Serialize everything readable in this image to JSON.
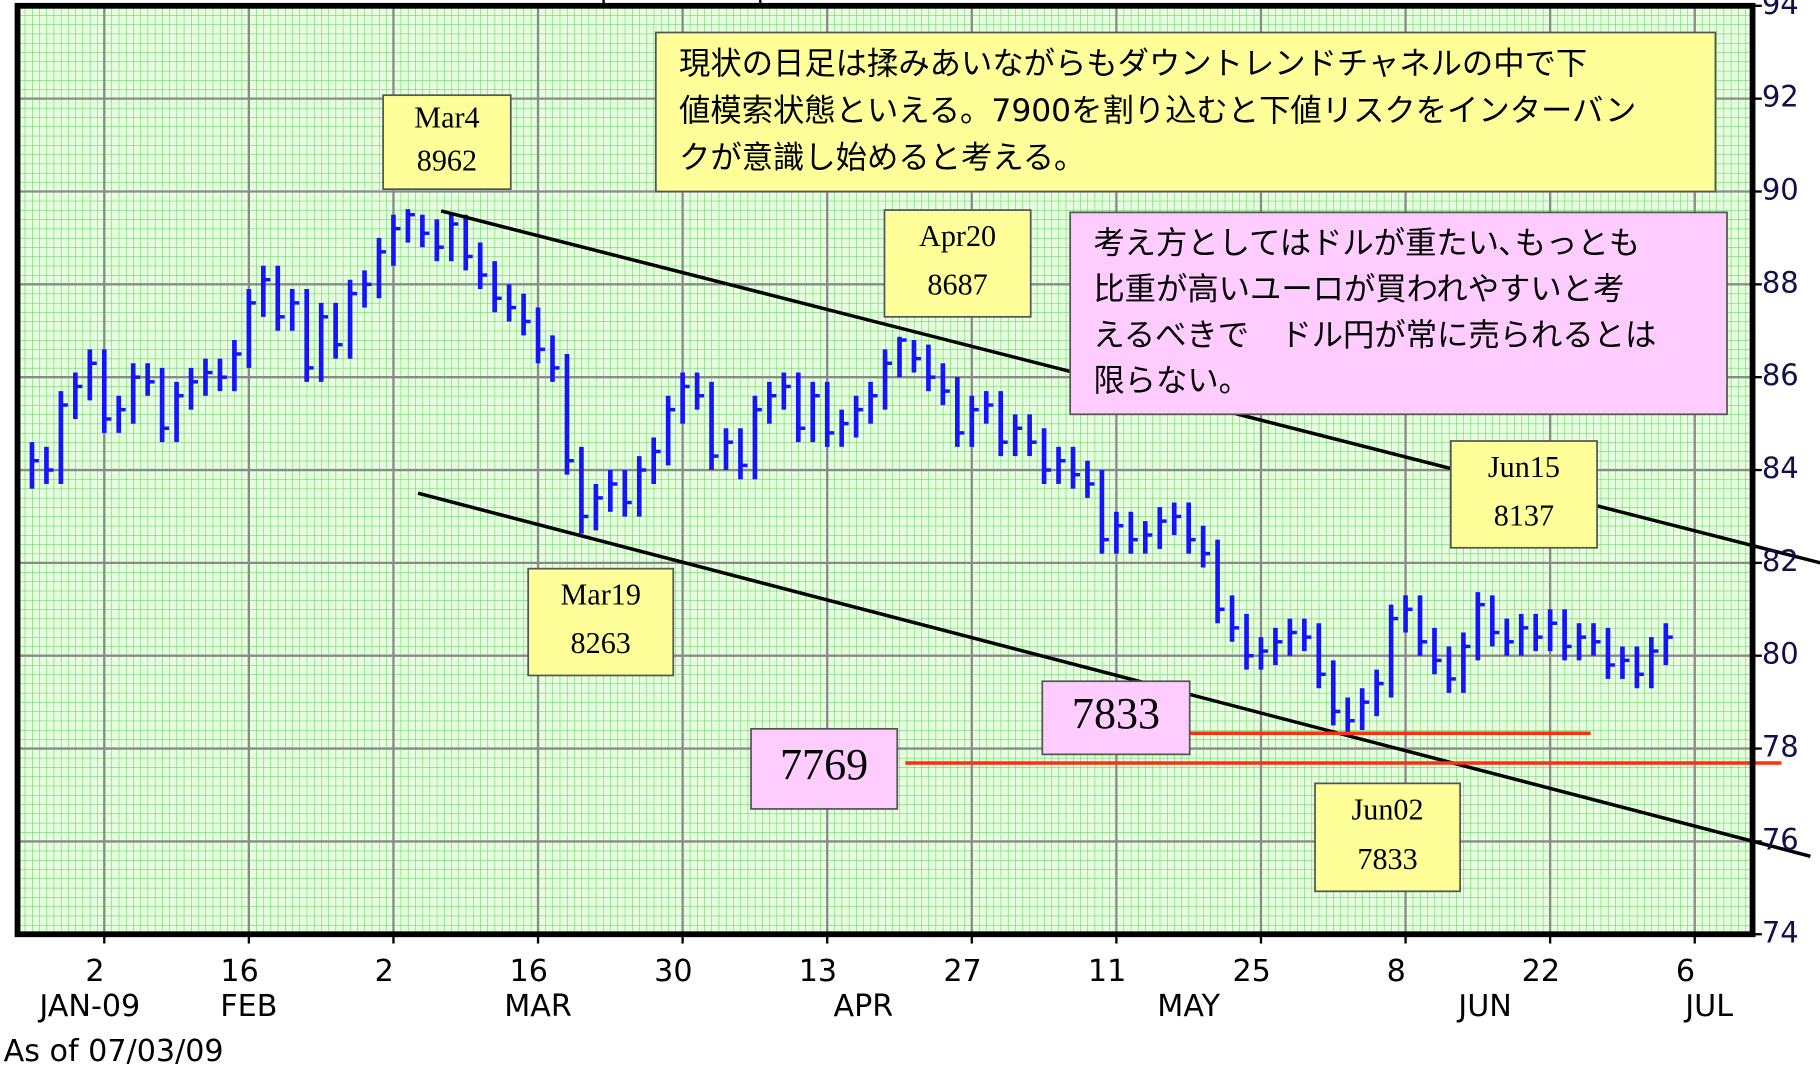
{
  "chart_data": {
    "type": "hlc",
    "footnote": "As of 07/03/09",
    "xlim": [
      0,
      120
    ],
    "ylim": [
      74,
      94
    ],
    "yticks": [
      74,
      76,
      78,
      80,
      82,
      84,
      86,
      88,
      90,
      92,
      94
    ],
    "xticks": [
      {
        "value": 6,
        "label": "2"
      },
      {
        "value": 16,
        "label": "16"
      },
      {
        "value": 26,
        "label": "2"
      },
      {
        "value": 36,
        "label": "16"
      },
      {
        "value": 46,
        "label": "30"
      },
      {
        "value": 56,
        "label": "13"
      },
      {
        "value": 66,
        "label": "27"
      },
      {
        "value": 76,
        "label": "11"
      },
      {
        "value": 86,
        "label": "25"
      },
      {
        "value": 96,
        "label": "8"
      },
      {
        "value": 106,
        "label": "22"
      },
      {
        "value": 116,
        "label": "6"
      }
    ],
    "x_month_labels": [
      {
        "value": 5,
        "label": "JAN-09"
      },
      {
        "value": 16,
        "label": "FEB"
      },
      {
        "value": 36,
        "label": "MAR"
      },
      {
        "value": 58.5,
        "label": "APR"
      },
      {
        "value": 81,
        "label": "MAY"
      },
      {
        "value": 101.5,
        "label": "JUN"
      },
      {
        "value": 117,
        "label": "JUL"
      }
    ],
    "grid": true,
    "color": "#1414ff",
    "x": [
      1,
      2,
      3,
      4,
      5,
      6,
      7,
      8,
      9,
      10,
      11,
      12,
      13,
      14,
      15,
      16,
      17,
      18,
      19,
      20,
      21,
      22,
      23,
      24,
      25,
      26,
      27,
      28,
      29,
      30,
      31,
      32,
      33,
      34,
      35,
      36,
      37,
      38,
      39,
      40,
      41,
      42,
      43,
      44,
      45,
      46,
      47,
      48,
      49,
      50,
      51,
      52,
      53,
      54,
      55,
      56,
      57,
      58,
      59,
      60,
      61,
      62,
      63,
      64,
      65,
      66,
      67,
      68,
      69,
      70,
      71,
      72,
      73,
      74,
      75,
      76,
      77,
      78,
      79,
      80,
      81,
      82,
      83,
      84,
      85,
      86,
      87,
      88,
      89,
      90,
      91,
      92,
      93,
      94,
      95,
      96,
      97,
      98,
      99,
      100,
      101,
      102,
      103,
      104,
      105,
      106,
      107,
      108,
      109,
      110,
      111,
      112,
      113,
      114
    ],
    "high": [
      84.6,
      84.5,
      85.7,
      86.1,
      86.6,
      86.6,
      85.6,
      86.3,
      86.3,
      86.2,
      85.9,
      86.2,
      86.4,
      86.4,
      86.8,
      87.9,
      88.4,
      88.4,
      87.9,
      87.9,
      87.6,
      87.6,
      88.1,
      88.3,
      89.0,
      89.5,
      89.62,
      89.5,
      89.4,
      89.5,
      89.5,
      88.9,
      88.5,
      88.0,
      87.8,
      87.5,
      86.9,
      86.5,
      84.5,
      83.7,
      84.0,
      84.0,
      84.3,
      84.7,
      85.6,
      86.1,
      86.1,
      85.9,
      84.9,
      84.9,
      85.6,
      85.9,
      86.1,
      86.1,
      85.9,
      85.9,
      85.3,
      85.6,
      85.9,
      86.6,
      86.87,
      86.8,
      86.7,
      86.3,
      86.0,
      85.6,
      85.7,
      85.7,
      85.2,
      85.2,
      84.9,
      84.5,
      84.5,
      84.2,
      84.0,
      83.1,
      83.1,
      82.9,
      83.2,
      83.3,
      83.3,
      82.8,
      82.5,
      81.3,
      80.9,
      80.4,
      80.6,
      80.8,
      80.8,
      80.7,
      79.9,
      79.1,
      79.3,
      79.7,
      81.1,
      81.3,
      81.3,
      80.6,
      80.2,
      80.5,
      81.37,
      81.3,
      80.8,
      80.9,
      80.9,
      81.0,
      81.0,
      80.7,
      80.7,
      80.6,
      80.2,
      80.2,
      80.4,
      80.7
    ],
    "low": [
      83.6,
      83.7,
      83.7,
      85.1,
      85.5,
      84.8,
      84.8,
      85.0,
      85.6,
      84.6,
      84.6,
      85.3,
      85.6,
      85.7,
      85.7,
      86.2,
      87.3,
      87.0,
      87.0,
      85.9,
      85.9,
      86.4,
      86.4,
      87.5,
      87.7,
      88.4,
      88.9,
      88.8,
      88.5,
      88.5,
      88.3,
      87.9,
      87.4,
      87.2,
      86.9,
      86.3,
      85.9,
      83.9,
      82.63,
      82.7,
      83.1,
      83.0,
      83.0,
      83.7,
      84.1,
      85.0,
      85.3,
      84.0,
      84.0,
      83.8,
      83.8,
      85.0,
      85.3,
      84.6,
      84.6,
      84.5,
      84.5,
      84.7,
      85.0,
      85.3,
      86.0,
      86.1,
      85.7,
      85.4,
      84.5,
      84.5,
      85.0,
      84.3,
      84.3,
      84.3,
      83.7,
      83.7,
      83.6,
      83.4,
      82.2,
      82.2,
      82.2,
      82.2,
      82.3,
      82.6,
      82.2,
      81.9,
      80.7,
      80.3,
      79.7,
      79.7,
      79.8,
      80.0,
      80.1,
      79.3,
      78.5,
      78.33,
      78.4,
      78.7,
      79.1,
      80.5,
      80.0,
      79.6,
      79.2,
      79.2,
      79.9,
      80.2,
      80.0,
      80.0,
      80.1,
      80.1,
      79.9,
      79.9,
      80.0,
      79.5,
      79.5,
      79.3,
      79.3,
      79.8
    ],
    "close": [
      84.2,
      84.0,
      85.4,
      85.8,
      86.3,
      85.1,
      85.3,
      86.0,
      85.9,
      84.9,
      85.6,
      85.9,
      86.1,
      86.0,
      86.5,
      87.6,
      88.1,
      87.3,
      87.6,
      86.2,
      87.3,
      86.7,
      87.8,
      88.0,
      88.7,
      89.2,
      89.5,
      89.1,
      88.8,
      89.3,
      88.6,
      88.2,
      87.7,
      87.5,
      87.2,
      86.6,
      86.2,
      84.2,
      83.0,
      83.4,
      83.7,
      83.3,
      84.0,
      84.4,
      85.3,
      85.8,
      85.6,
      84.3,
      84.6,
      84.1,
      85.3,
      85.6,
      85.8,
      84.9,
      85.6,
      84.8,
      85.0,
      85.3,
      85.6,
      86.3,
      86.8,
      86.4,
      86.0,
      85.7,
      84.8,
      85.3,
      85.4,
      84.6,
      84.9,
      84.6,
      84.0,
      84.2,
      83.9,
      83.7,
      82.5,
      82.8,
      82.5,
      82.6,
      82.9,
      83.0,
      82.5,
      82.2,
      81.0,
      80.6,
      80.0,
      80.1,
      80.3,
      80.5,
      80.4,
      79.6,
      78.8,
      78.6,
      79.0,
      79.4,
      80.8,
      81.0,
      80.3,
      79.9,
      79.5,
      80.2,
      81.1,
      80.5,
      80.3,
      80.6,
      80.4,
      80.7,
      80.2,
      80.4,
      80.3,
      79.8,
      79.9,
      79.6,
      80.1,
      80.4
    ],
    "lines": [
      {
        "points": [
          [
            29.3,
            89.58
          ],
          [
            124.7,
            82.0
          ]
        ],
        "color": "#000000"
      },
      {
        "points": [
          [
            27.7,
            83.5
          ],
          [
            124.0,
            75.68
          ]
        ],
        "color": "#000000"
      },
      {
        "points": [
          [
            81.1,
            78.33
          ],
          [
            108.8,
            78.33
          ]
        ],
        "color": "#ff3010"
      },
      {
        "points": [
          [
            61.4,
            77.69
          ],
          [
            122.0,
            77.69
          ]
        ],
        "color": "#ff3010"
      }
    ],
    "annotations": [
      {
        "lines": [
          "Mar4",
          "8962"
        ],
        "fill": "#ffff99"
      },
      {
        "lines": [
          "Apr20",
          "8687"
        ],
        "fill": "#ffff99"
      },
      {
        "lines": [
          "Mar19",
          "8263"
        ],
        "fill": "#ffff99"
      },
      {
        "lines": [
          "Jun15",
          "8137"
        ],
        "fill": "#ffff99"
      },
      {
        "lines": [
          "Jun02",
          "7833"
        ],
        "fill": "#ffff99"
      },
      {
        "lines": [
          "現状の日足は揉みあいながらもダウントレンドチャネルの中で下",
          "値模索状態といえる。7900を割り込むと下値リスクをインターバン",
          "クが意識し始めると考える。"
        ],
        "fill": "#ffff99"
      },
      {
        "lines": [
          "考え方としてはドルが重たい､もっとも",
          "比重が高いユーロが買われやすいと考",
          "えるべきで　ドル円が常に売られるとは",
          "限らない。"
        ],
        "fill": "#ffccff"
      },
      {
        "lines": [
          "7833"
        ],
        "fill": "#ffccff"
      },
      {
        "lines": [
          "7769"
        ],
        "fill": "#ffccff"
      }
    ]
  }
}
